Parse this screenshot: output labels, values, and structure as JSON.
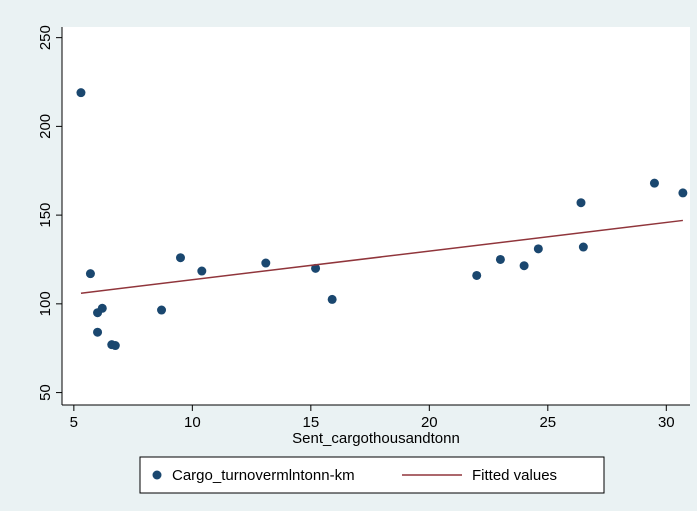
{
  "chart_data": {
    "type": "scatter",
    "x_label": "Sent_cargothousandtonn",
    "xlim": [
      4.5,
      31
    ],
    "xticks": [
      5,
      10,
      15,
      20,
      25,
      30
    ],
    "ylim": [
      43,
      256
    ],
    "yticks": [
      50,
      100,
      150,
      200,
      250
    ],
    "grid": false,
    "legend": "bottom",
    "series": [
      {
        "name": "Cargo_turnovermlntonn-km",
        "type": "scatter",
        "color": "#1a476f",
        "x": [
          5.3,
          5.7,
          6.0,
          6.0,
          6.2,
          6.6,
          6.75,
          8.7,
          9.5,
          10.4,
          13.1,
          15.2,
          15.9,
          22.0,
          23.0,
          24.0,
          24.6,
          26.4,
          26.5,
          29.5,
          30.7
        ],
        "values": [
          219,
          117,
          95,
          84,
          97.5,
          77,
          76.5,
          96.5,
          126,
          118.5,
          123,
          120,
          102.5,
          116,
          125,
          121.5,
          131,
          157,
          132,
          168,
          162.5
        ]
      },
      {
        "name": "Fitted values",
        "type": "line",
        "color": "#90353b",
        "x": [
          5.3,
          30.7
        ],
        "values": [
          106,
          147
        ]
      }
    ]
  }
}
